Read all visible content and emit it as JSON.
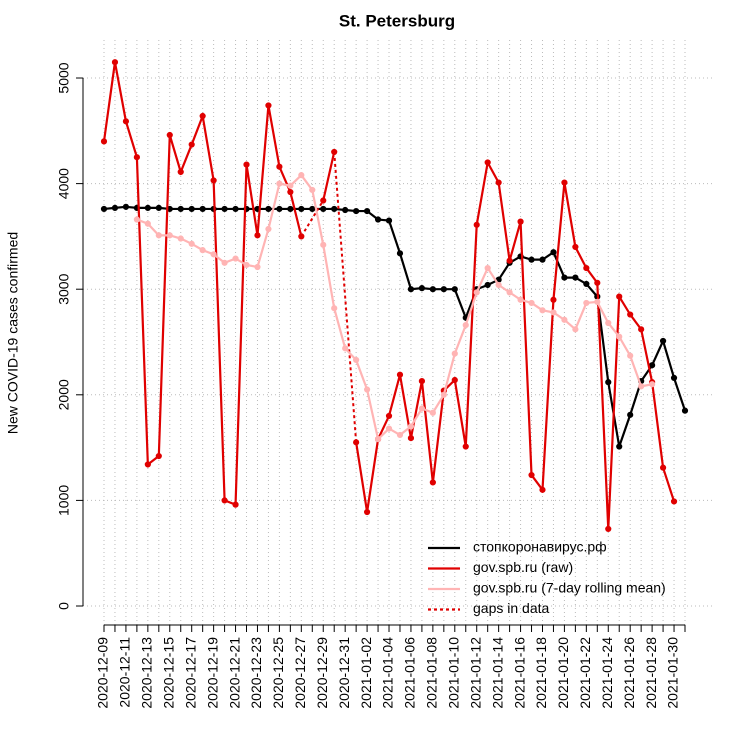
{
  "chart_data": {
    "type": "line",
    "title": "St. Petersburg",
    "y_label": "New COVID-19 cases confirmed",
    "categories": [
      "2020-12-09",
      null,
      "2020-12-11",
      null,
      "2020-12-13",
      null,
      "2020-12-15",
      null,
      "2020-12-17",
      null,
      "2020-12-19",
      null,
      "2020-12-21",
      null,
      "2020-12-23",
      null,
      "2020-12-25",
      null,
      "2020-12-27",
      null,
      "2020-12-29",
      null,
      "2020-12-31",
      null,
      "2021-01-02",
      null,
      "2021-01-04",
      null,
      "2021-01-06",
      null,
      "2021-01-08",
      null,
      "2021-01-10",
      null,
      "2021-01-12",
      null,
      "2021-01-14",
      null,
      "2021-01-16",
      null,
      "2021-01-18",
      null,
      "2021-01-20",
      null,
      "2021-01-22",
      null,
      "2021-01-24",
      null,
      "2021-01-26",
      null,
      "2021-01-28",
      null,
      "2021-01-30",
      null
    ],
    "series": [
      {
        "name": "стопкоронавирус.рф",
        "color": "#000000",
        "values": [
          3760,
          3770,
          3780,
          3770,
          3770,
          3770,
          3760,
          3760,
          3760,
          3760,
          3760,
          3760,
          3760,
          3760,
          3760,
          3760,
          3760,
          3760,
          3760,
          3760,
          3760,
          3760,
          3750,
          3740,
          3740,
          3660,
          3650,
          3340,
          3000,
          3010,
          3000,
          3000,
          3000,
          2730,
          3000,
          3040,
          3090,
          3250,
          3310,
          3280,
          3280,
          3350,
          3110,
          3110,
          3050,
          2930,
          2120,
          1510,
          1810,
          2130,
          2280,
          2510,
          2160,
          1850
        ]
      },
      {
        "name": "gov.spb.ru (raw)",
        "color": "#e00000",
        "connect_gaps": true,
        "values": [
          4400,
          5150,
          4590,
          4250,
          1340,
          1420,
          4460,
          4110,
          4370,
          4640,
          4030,
          1000,
          960,
          4180,
          3510,
          4740,
          4160,
          3920,
          3500,
          null,
          3840,
          4300,
          null,
          1550,
          890,
          1580,
          1800,
          2190,
          1590,
          2130,
          1170,
          2040,
          2140,
          1510,
          3610,
          4200,
          4010,
          3270,
          3640,
          1240,
          1100,
          2900,
          4010,
          3400,
          3200,
          3060,
          730,
          2930,
          2760,
          2620,
          2120,
          1310,
          990,
          null
        ]
      },
      {
        "name": "gov.spb.ru (7-day rolling mean)",
        "color": "#ffb4b4",
        "values": [
          null,
          null,
          null,
          3660,
          3620,
          3510,
          3510,
          3480,
          3430,
          3370,
          3330,
          3250,
          3290,
          3230,
          3210,
          3570,
          4000,
          3980,
          4080,
          3940,
          3420,
          2820,
          2440,
          2330,
          2050,
          1580,
          1680,
          1620,
          1700,
          1870,
          1830,
          2000,
          2390,
          2660,
          2970,
          3200,
          3040,
          2970,
          2900,
          2870,
          2800,
          2780,
          2710,
          2620,
          2870,
          2880,
          2680,
          2550,
          2370,
          2080,
          2100,
          null,
          null,
          null
        ]
      }
    ],
    "gap_legend": "gaps in data",
    "ylim": [
      -180,
      5360
    ],
    "yticks": [
      0,
      1000,
      2000,
      3000,
      4000,
      5000
    ],
    "grid": true,
    "legend": "bottom-right"
  }
}
